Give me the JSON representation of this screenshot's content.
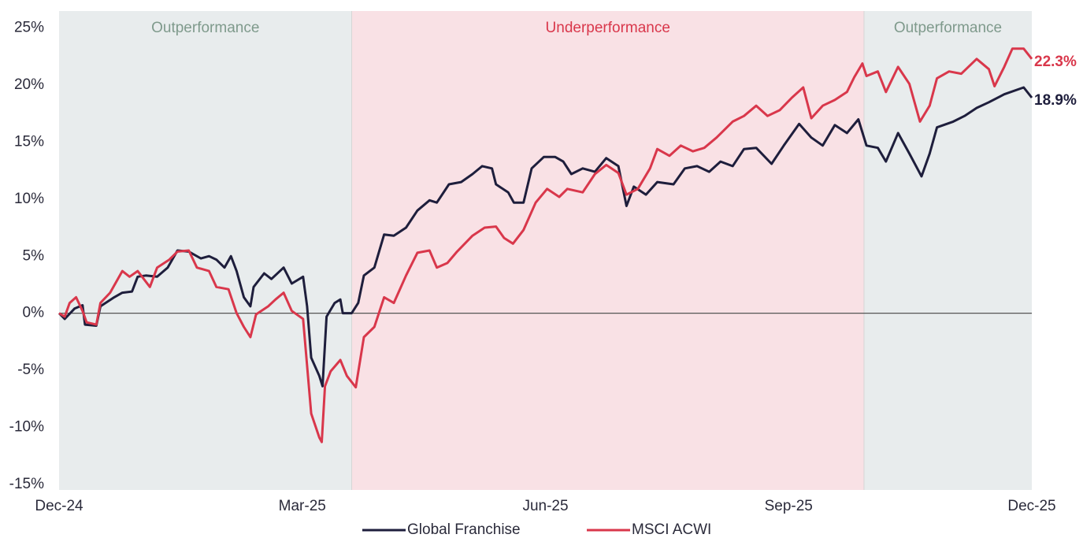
{
  "chart_data": {
    "type": "line",
    "xlim": [
      0,
      12
    ],
    "xticks": [
      {
        "value": 0,
        "label": "Dec-24"
      },
      {
        "value": 3,
        "label": "Mar-25"
      },
      {
        "value": 6,
        "label": "Jun-25"
      },
      {
        "value": 9,
        "label": "Sep-25"
      },
      {
        "value": 12,
        "label": "Dec-25"
      }
    ],
    "ylim": [
      -15.5,
      26.5
    ],
    "yticks": [
      {
        "value": -15,
        "label": "-15%"
      },
      {
        "value": -10,
        "label": "-10%"
      },
      {
        "value": -5,
        "label": "-5%"
      },
      {
        "value": 0,
        "label": "0%"
      },
      {
        "value": 5,
        "label": "5%"
      },
      {
        "value": 10,
        "label": "10%"
      },
      {
        "value": 15,
        "label": "15%"
      },
      {
        "value": 20,
        "label": "20%"
      },
      {
        "value": 25,
        "label": "25%"
      }
    ],
    "legend": "bottom",
    "regions": [
      {
        "label": "Outperformance",
        "start": 0,
        "end": 3.61,
        "color": "#e8eced",
        "label_color": "#7f9a8c"
      },
      {
        "label": "Underperformance",
        "start": 3.61,
        "end": 9.93,
        "color": "#f9e1e5",
        "label_color": "#d9374b"
      },
      {
        "label": "Outperformance",
        "start": 9.93,
        "end": 12,
        "color": "#e8eced",
        "label_color": "#7f9a8c"
      }
    ],
    "series": [
      {
        "name": "Global Franchise",
        "color": "#1e1e3c",
        "end_label": "18.9%",
        "x": [
          0,
          0.07,
          0.19,
          0.29,
          0.32,
          0.46,
          0.51,
          0.68,
          0.78,
          0.9,
          0.97,
          1.07,
          1.21,
          1.34,
          1.46,
          1.6,
          1.75,
          1.85,
          1.94,
          2.04,
          2.12,
          2.19,
          2.28,
          2.36,
          2.4,
          2.53,
          2.62,
          2.77,
          2.87,
          3.01,
          3.06,
          3.11,
          3.21,
          3.25,
          3.3,
          3.4,
          3.47,
          3.5,
          3.61,
          3.69,
          3.76,
          3.89,
          4.01,
          4.13,
          4.28,
          4.42,
          4.57,
          4.66,
          4.81,
          4.96,
          5.1,
          5.22,
          5.34,
          5.39,
          5.54,
          5.61,
          5.73,
          5.83,
          5.98,
          6.12,
          6.22,
          6.32,
          6.46,
          6.61,
          6.75,
          6.9,
          7.0,
          7.09,
          7.24,
          7.38,
          7.58,
          7.72,
          7.87,
          8.02,
          8.16,
          8.31,
          8.45,
          8.6,
          8.79,
          8.94,
          9.13,
          9.28,
          9.42,
          9.57,
          9.72,
          9.86,
          9.96,
          10.1,
          10.2,
          10.35,
          10.49,
          10.64,
          10.74,
          10.83,
          11.03,
          11.17,
          11.32,
          11.47,
          11.66,
          11.9,
          12.0
        ],
        "values": [
          0,
          -0.5,
          0.4,
          0.7,
          -1.0,
          -1.1,
          0.6,
          1.4,
          1.8,
          1.9,
          3.2,
          3.3,
          3.2,
          4.0,
          5.5,
          5.4,
          4.8,
          5.0,
          4.7,
          4.0,
          5.0,
          3.7,
          1.4,
          0.6,
          2.3,
          3.5,
          3.0,
          4.0,
          2.6,
          3.2,
          0.6,
          -3.9,
          -5.5,
          -6.4,
          -0.3,
          0.9,
          1.2,
          0,
          0,
          0.9,
          3.3,
          4.0,
          6.9,
          6.8,
          7.5,
          9.0,
          9.9,
          9.7,
          11.3,
          11.5,
          12.2,
          12.9,
          12.7,
          11.3,
          10.6,
          9.7,
          9.7,
          12.7,
          13.7,
          13.7,
          13.3,
          12.2,
          12.7,
          12.4,
          13.6,
          12.9,
          9.4,
          11.1,
          10.4,
          11.5,
          11.3,
          12.7,
          12.9,
          12.4,
          13.3,
          12.9,
          14.4,
          14.5,
          13.1,
          14.7,
          16.6,
          15.4,
          14.7,
          16.5,
          15.8,
          17.0,
          14.7,
          14.5,
          13.3,
          15.8,
          14.0,
          12.0,
          14.0,
          16.3,
          16.8,
          17.3,
          18.0,
          18.5,
          19.2,
          19.8,
          18.9
        ]
      },
      {
        "name": "MSCI ACWI",
        "color": "#d9374b",
        "end_label": "22.3%",
        "x": [
          0,
          0.07,
          0.13,
          0.21,
          0.29,
          0.34,
          0.46,
          0.51,
          0.63,
          0.78,
          0.87,
          0.97,
          1.12,
          1.21,
          1.36,
          1.46,
          1.6,
          1.7,
          1.85,
          1.94,
          2.09,
          2.19,
          2.28,
          2.36,
          2.43,
          2.58,
          2.67,
          2.77,
          2.87,
          3.01,
          3.11,
          3.21,
          3.24,
          3.28,
          3.35,
          3.47,
          3.55,
          3.66,
          3.76,
          3.89,
          4.01,
          4.13,
          4.28,
          4.42,
          4.57,
          4.66,
          4.79,
          4.91,
          5.1,
          5.25,
          5.39,
          5.49,
          5.6,
          5.73,
          5.88,
          6.02,
          6.17,
          6.27,
          6.46,
          6.61,
          6.75,
          6.9,
          7.0,
          7.14,
          7.29,
          7.38,
          7.53,
          7.67,
          7.82,
          7.96,
          8.11,
          8.31,
          8.45,
          8.6,
          8.74,
          8.89,
          9.04,
          9.18,
          9.28,
          9.42,
          9.57,
          9.72,
          9.81,
          9.91,
          9.96,
          10.1,
          10.2,
          10.35,
          10.49,
          10.62,
          10.74,
          10.83,
          10.98,
          11.13,
          11.32,
          11.47,
          11.54,
          11.66,
          11.76,
          11.9,
          12.0
        ],
        "values": [
          0,
          -0.3,
          0.9,
          1.4,
          0.2,
          -0.8,
          -1.0,
          0.9,
          1.8,
          3.7,
          3.2,
          3.7,
          2.3,
          4.0,
          4.7,
          5.4,
          5.5,
          4.0,
          3.7,
          2.3,
          2.1,
          0,
          -1.2,
          -2.1,
          -0.1,
          0.6,
          1.2,
          1.8,
          0.2,
          -0.5,
          -8.8,
          -10.9,
          -11.3,
          -6.4,
          -5.1,
          -4.1,
          -5.5,
          -6.5,
          -2.1,
          -1.2,
          1.4,
          0.9,
          3.3,
          5.3,
          5.5,
          4.0,
          4.4,
          5.4,
          6.8,
          7.5,
          7.6,
          6.6,
          6.1,
          7.3,
          9.7,
          10.9,
          10.2,
          10.9,
          10.6,
          12.2,
          13.0,
          12.3,
          10.4,
          10.9,
          12.7,
          14.4,
          13.8,
          14.7,
          14.2,
          14.5,
          15.4,
          16.8,
          17.3,
          18.2,
          17.3,
          17.8,
          18.9,
          19.8,
          17.1,
          18.2,
          18.7,
          19.4,
          20.7,
          21.9,
          20.8,
          21.2,
          19.4,
          21.6,
          20.1,
          16.8,
          18.2,
          20.6,
          21.2,
          21.0,
          22.3,
          21.4,
          19.9,
          21.6,
          23.2,
          23.2,
          22.3
        ]
      }
    ]
  }
}
